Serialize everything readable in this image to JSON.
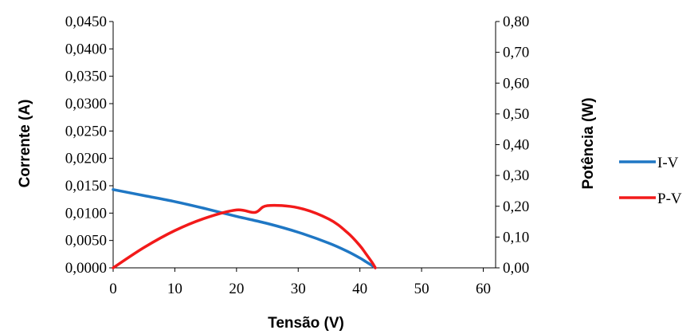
{
  "chart_data": {
    "type": "line",
    "xlabel": "Tensão (V)",
    "ylabel": "Corrente (A)",
    "y2label": "Potência (W)",
    "xlim": [
      0,
      62
    ],
    "ylim": [
      0,
      0.045
    ],
    "y2lim": [
      0,
      0.8
    ],
    "x_ticks": [
      "0",
      "10",
      "20",
      "30",
      "40",
      "50",
      "60"
    ],
    "y_ticks": [
      "0,0000",
      "0,0050",
      "0,0100",
      "0,0150",
      "0,0200",
      "0,0250",
      "0,0300",
      "0,0350",
      "0,0400",
      "0,0450"
    ],
    "y2_ticks": [
      "0,00",
      "0,10",
      "0,20",
      "0,30",
      "0,40",
      "0,50",
      "0,60",
      "0,70",
      "0,80"
    ],
    "grid": false,
    "legend_position": "right",
    "series": [
      {
        "name": "I-V",
        "axis": "left",
        "color": "#1F77C4",
        "x": [
          0,
          5,
          10,
          15,
          20,
          25,
          30,
          35,
          38,
          40,
          41,
          42,
          42.5
        ],
        "y": [
          0.0143,
          0.0132,
          0.0121,
          0.0108,
          0.0094,
          0.0081,
          0.0065,
          0.0045,
          0.003,
          0.0018,
          0.0011,
          0.0004,
          0.0
        ]
      },
      {
        "name": "P-V",
        "axis": "right",
        "color": "#F21A1A",
        "x": [
          0,
          5,
          10,
          15,
          20,
          23,
          25,
          30,
          35,
          38,
          40,
          41,
          42,
          42.5
        ],
        "y": [
          0.0,
          0.066,
          0.121,
          0.162,
          0.188,
          0.18,
          0.202,
          0.195,
          0.158,
          0.114,
          0.072,
          0.045,
          0.017,
          0.0
        ]
      }
    ]
  }
}
